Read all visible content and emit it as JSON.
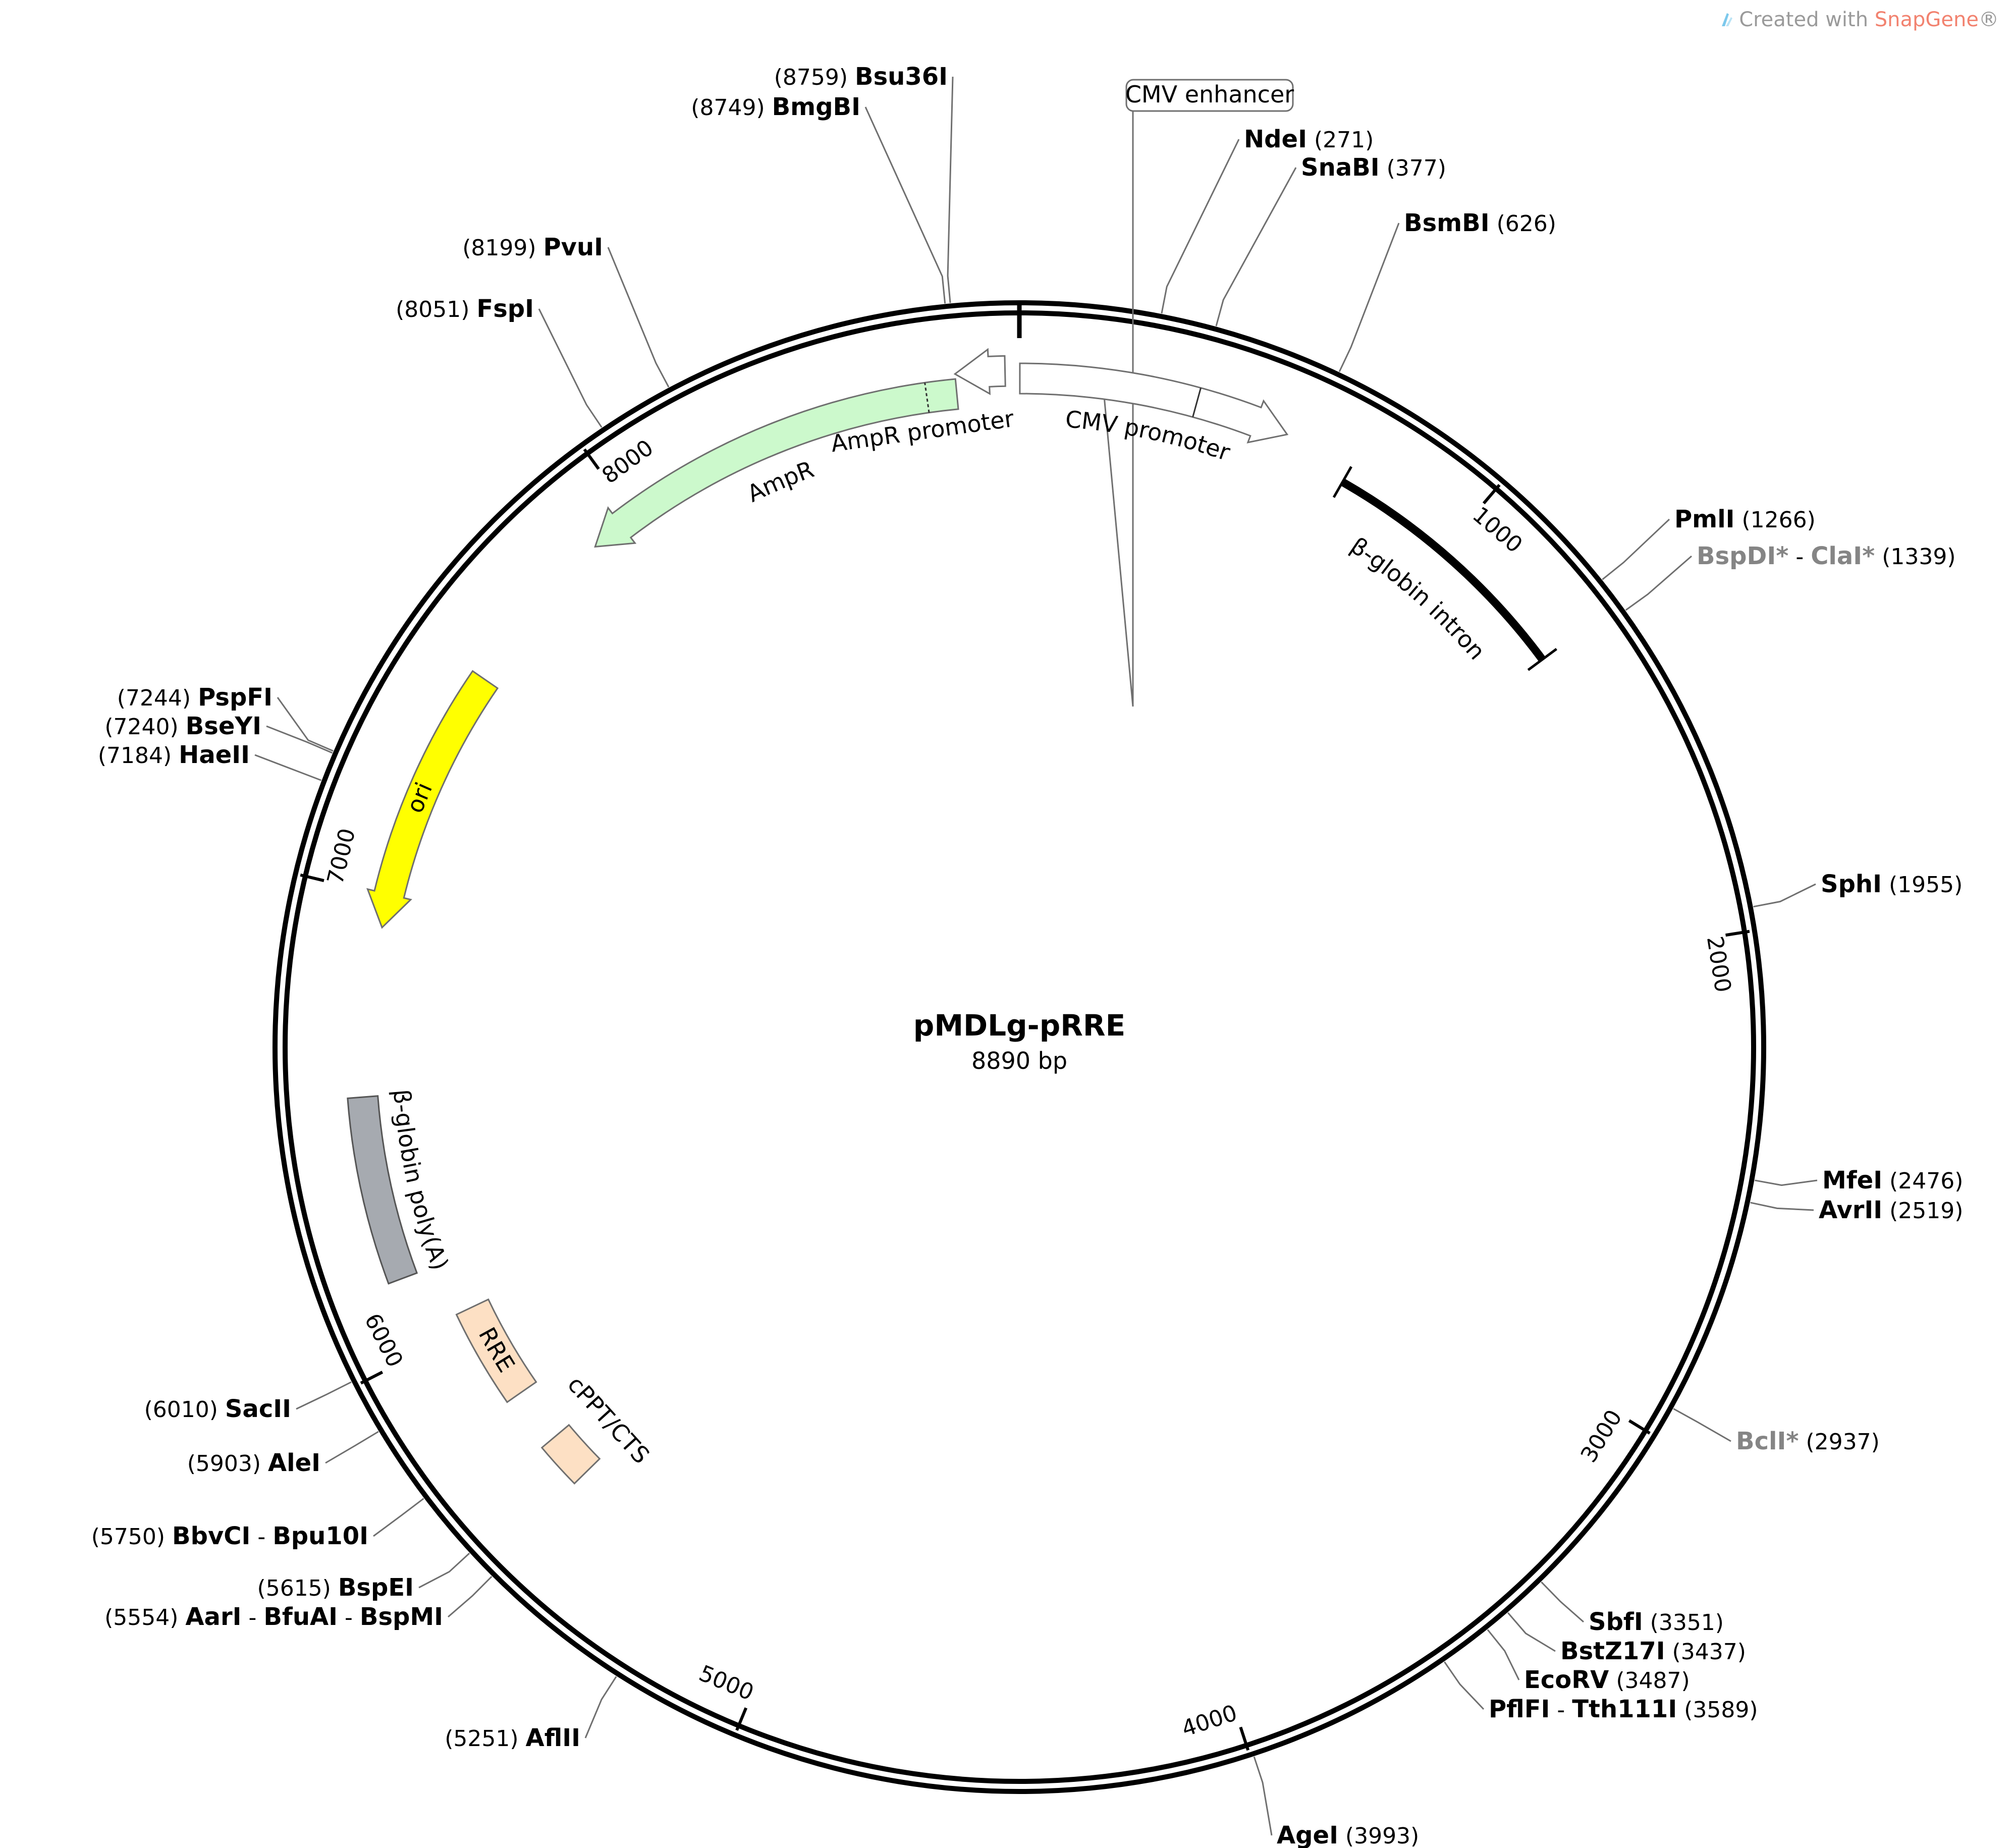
{
  "credit": {
    "prefix": "Created with ",
    "brand": "SnapGene",
    "suffix": "®"
  },
  "plasmid": {
    "name": "pMDLg-pRRE",
    "size_label": "8890 bp",
    "length": 8890
  },
  "ticks": [
    {
      "pos": 1000,
      "label": "1000"
    },
    {
      "pos": 2000,
      "label": "2000"
    },
    {
      "pos": 3000,
      "label": "3000"
    },
    {
      "pos": 4000,
      "label": "4000"
    },
    {
      "pos": 5000,
      "label": "5000"
    },
    {
      "pos": 6000,
      "label": "6000"
    },
    {
      "pos": 7000,
      "label": "7000"
    },
    {
      "pos": 8000,
      "label": "8000"
    }
  ],
  "features": [
    {
      "id": "cmv-enhancer",
      "label": "CMV enhancer",
      "start": 1,
      "end": 380,
      "type": "boxed-label",
      "fill": "#ffffff",
      "stroke": "#6f6f6f"
    },
    {
      "id": "cmv-promoter",
      "label": "CMV promoter",
      "start": 1,
      "end": 583,
      "divider": 380,
      "type": "arrow",
      "dir": 1,
      "fill": "#ffffff",
      "stroke": "#6f6f6f"
    },
    {
      "id": "beta-globin-intron",
      "label": "β-globin intron",
      "start": 735,
      "end": 1320,
      "type": "bar",
      "fill": "#000000",
      "stroke": "#000000"
    },
    {
      "id": "ampr-promoter",
      "label": "AmpR promoter",
      "start": 8755,
      "end": 8860,
      "type": "arrow",
      "dir": -1,
      "fill": "#ffffff",
      "stroke": "#6f6f6f"
    },
    {
      "id": "ampr",
      "label": "AmpR",
      "start": 7895,
      "end": 8755,
      "divider": 8690,
      "type": "arrow",
      "dir": -1,
      "fill": "#ccf9cc",
      "stroke": "#6f6f6f"
    },
    {
      "id": "ori",
      "label": "ori",
      "start": 6930,
      "end": 7520,
      "type": "arrow",
      "dir": -1,
      "fill": "#ffff00",
      "stroke": "#6f6f6f"
    },
    {
      "id": "beta-globin-polya",
      "label": "β-globin poly(A)",
      "start": 6160,
      "end": 6560,
      "type": "box",
      "fill": "#a6aab0",
      "stroke": "#555555"
    },
    {
      "id": "rre",
      "label": "RRE",
      "start": 5810,
      "end": 6040,
      "type": "box",
      "fill": "#fde0c4",
      "stroke": "#6f6f6f"
    },
    {
      "id": "cppt-cts",
      "label": "cPPT/CTS",
      "start": 5570,
      "end": 5680,
      "type": "box",
      "fill": "#fde0c4",
      "stroke": "#6f6f6f"
    }
  ],
  "sites": [
    {
      "id": "ndei",
      "names": [
        "NdeI"
      ],
      "pos": "271",
      "at": 271
    },
    {
      "id": "snabi",
      "names": [
        "SnaBI"
      ],
      "pos": "377",
      "at": 377
    },
    {
      "id": "bsmbi",
      "names": [
        "BsmBI"
      ],
      "pos": "626",
      "at": 626
    },
    {
      "id": "pmli",
      "names": [
        "PmlI"
      ],
      "pos": "1266",
      "at": 1266
    },
    {
      "id": "bspdi-clai",
      "names": [
        "BspDI*",
        "ClaI*"
      ],
      "pos": "1339",
      "at": 1339,
      "dim": true
    },
    {
      "id": "sphi",
      "names": [
        "SphI"
      ],
      "pos": "1955",
      "at": 1955
    },
    {
      "id": "mfei",
      "names": [
        "MfeI"
      ],
      "pos": "2476",
      "at": 2476
    },
    {
      "id": "avrii",
      "names": [
        "AvrII"
      ],
      "pos": "2519",
      "at": 2519
    },
    {
      "id": "bcli",
      "names": [
        "BclI*"
      ],
      "pos": "2937",
      "at": 2937,
      "dim": true
    },
    {
      "id": "sbfi",
      "names": [
        "SbfI"
      ],
      "pos": "3351",
      "at": 3351
    },
    {
      "id": "bstz17i",
      "names": [
        "BstZ17I"
      ],
      "pos": "3437",
      "at": 3437
    },
    {
      "id": "ecorv",
      "names": [
        "EcoRV"
      ],
      "pos": "3487",
      "at": 3487
    },
    {
      "id": "pflfi-tth111i",
      "names": [
        "PflFI",
        "Tth111I"
      ],
      "pos": "3589",
      "at": 3589
    },
    {
      "id": "agei",
      "names": [
        "AgeI"
      ],
      "pos": "3993",
      "at": 3993
    },
    {
      "id": "aflii",
      "names": [
        "AflII"
      ],
      "pos": "5251",
      "at": 5251
    },
    {
      "id": "aari-bfuai-bspmi",
      "names": [
        "AarI",
        "BfuAI",
        "BspMI"
      ],
      "pos": "5554",
      "at": 5554
    },
    {
      "id": "bspei",
      "names": [
        "BspEI"
      ],
      "pos": "5615",
      "at": 5615
    },
    {
      "id": "bbvci-bpu10i",
      "names": [
        "BbvCI",
        "Bpu10I"
      ],
      "pos": "5750",
      "at": 5750
    },
    {
      "id": "alei",
      "names": [
        "AleI"
      ],
      "pos": "5903",
      "at": 5903
    },
    {
      "id": "sacii",
      "names": [
        "SacII"
      ],
      "pos": "6010",
      "at": 6010
    },
    {
      "id": "haeii",
      "names": [
        "HaeII"
      ],
      "pos": "7184",
      "at": 7184
    },
    {
      "id": "bseyi",
      "names": [
        "BseYI"
      ],
      "pos": "7240",
      "at": 7240
    },
    {
      "id": "pspfi",
      "names": [
        "PspFI"
      ],
      "pos": "7244",
      "at": 7244
    },
    {
      "id": "fspi",
      "names": [
        "FspI"
      ],
      "pos": "8051",
      "at": 8051
    },
    {
      "id": "pvui",
      "names": [
        "PvuI"
      ],
      "pos": "8199",
      "at": 8199
    },
    {
      "id": "bmgbi",
      "names": [
        "BmgBI"
      ],
      "pos": "8749",
      "at": 8749
    },
    {
      "id": "bsu36i",
      "names": [
        "Bsu36I"
      ],
      "pos": "8759",
      "at": 8759
    }
  ]
}
